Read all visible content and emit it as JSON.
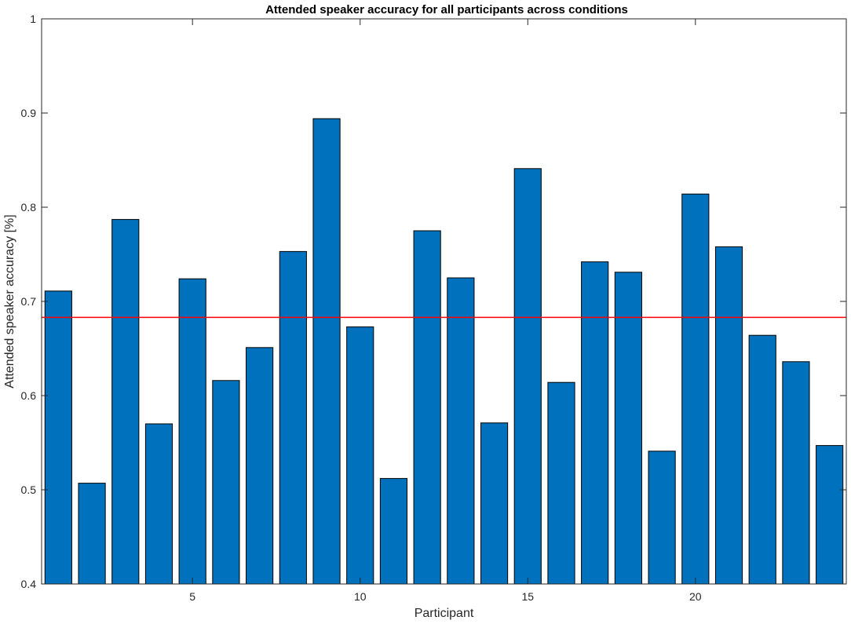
{
  "chart_data": {
    "type": "bar",
    "title": "Attended speaker accuracy for all participants across conditions",
    "xlabel": "Participant",
    "ylabel": "Attended speaker accuracy [%]",
    "categories": [
      1,
      2,
      3,
      4,
      5,
      6,
      7,
      8,
      9,
      10,
      11,
      12,
      13,
      14,
      15,
      16,
      17,
      18,
      19,
      20,
      21,
      22,
      23,
      24
    ],
    "values": [
      0.711,
      0.507,
      0.787,
      0.57,
      0.724,
      0.616,
      0.651,
      0.753,
      0.894,
      0.673,
      0.512,
      0.775,
      0.725,
      0.571,
      0.841,
      0.614,
      0.742,
      0.731,
      0.541,
      0.814,
      0.758,
      0.664,
      0.636,
      0.547
    ],
    "xlim": [
      0.5,
      24.5
    ],
    "ylim": [
      0.4,
      1.0
    ],
    "xticks": [
      5,
      10,
      15,
      20
    ],
    "yticks": [
      0.4,
      0.5,
      0.6,
      0.7,
      0.8,
      0.9,
      1
    ],
    "ytick_labels": [
      "0.4",
      "0.5",
      "0.6",
      "0.7",
      "0.8",
      "0.9",
      "1"
    ],
    "reference_line": 0.683,
    "grid": false,
    "colors": {
      "bar_fill": "#0072BD",
      "bar_edge": "#000000",
      "reference_line": "#FF0000",
      "axis": "#262626"
    }
  }
}
